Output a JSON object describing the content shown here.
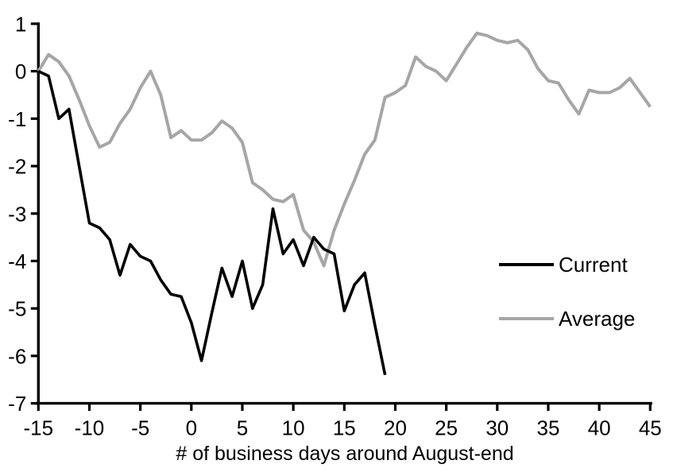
{
  "chart_data": {
    "type": "line",
    "title": "",
    "xlabel": "# of business days around August-end",
    "ylabel": "",
    "xlim": [
      -15,
      45
    ],
    "ylim": [
      -7,
      1
    ],
    "x_ticks": [
      -15,
      -10,
      -5,
      0,
      5,
      10,
      15,
      20,
      25,
      30,
      35,
      40,
      45
    ],
    "y_ticks": [
      1,
      0,
      -1,
      -2,
      -3,
      -4,
      -5,
      -6,
      -7
    ],
    "grid": false,
    "background": "#ffffff",
    "axis_color": "#000000",
    "legend_position": "middle-right",
    "series": [
      {
        "name": "Current",
        "color": "#000000",
        "line_width": 3.6,
        "x_start": -15,
        "x_step": 1,
        "values": [
          0,
          -0.1,
          -1.0,
          -0.8,
          -2.0,
          -3.2,
          -3.3,
          -3.55,
          -4.3,
          -3.65,
          -3.9,
          -4.0,
          -4.4,
          -4.7,
          -4.75,
          -5.3,
          -6.1,
          -5.1,
          -4.15,
          -4.75,
          -4.0,
          -5.0,
          -4.5,
          -2.9,
          -3.85,
          -3.55,
          -4.1,
          -3.5,
          -3.75,
          -3.85,
          -5.05,
          -4.5,
          -4.25,
          -5.35,
          -6.4
        ]
      },
      {
        "name": "Average",
        "color": "#a6a6a6",
        "line_width": 4,
        "x_start": -15,
        "x_step": 1,
        "values": [
          0,
          0.35,
          0.2,
          -0.1,
          -0.6,
          -1.15,
          -1.6,
          -1.5,
          -1.1,
          -0.8,
          -0.35,
          0,
          -0.5,
          -1.4,
          -1.25,
          -1.45,
          -1.45,
          -1.3,
          -1.05,
          -1.2,
          -1.5,
          -2.35,
          -2.5,
          -2.7,
          -2.75,
          -2.6,
          -3.35,
          -3.6,
          -4.1,
          -3.35,
          -2.8,
          -2.3,
          -1.75,
          -1.45,
          -0.55,
          -0.45,
          -0.3,
          0.3,
          0.1,
          0.0,
          -0.2,
          0.15,
          0.5,
          0.8,
          0.75,
          0.65,
          0.6,
          0.65,
          0.45,
          0.05,
          -0.2,
          -0.25,
          -0.6,
          -0.9,
          -0.4,
          -0.45,
          -0.45,
          -0.35,
          -0.15,
          -0.45,
          -0.75
        ]
      }
    ]
  },
  "legend": {
    "items": [
      {
        "label": "Current",
        "color": "#000000"
      },
      {
        "label": "Average",
        "color": "#a6a6a6"
      }
    ]
  }
}
